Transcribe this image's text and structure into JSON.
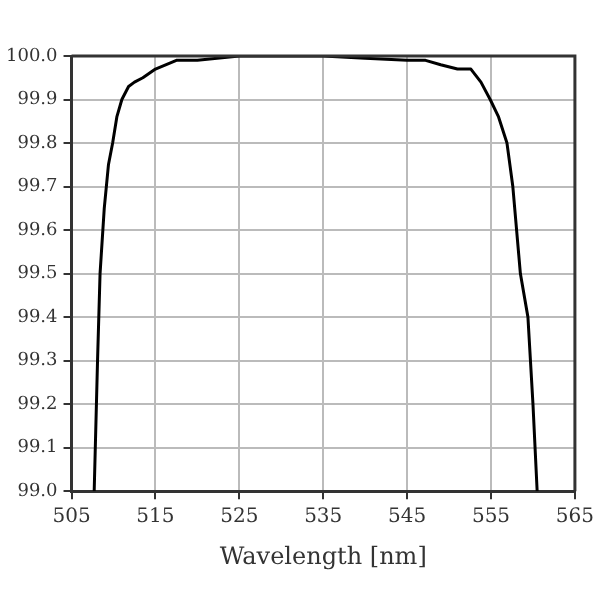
{
  "chart_data": {
    "type": "line",
    "xlabel": "Wavelength [nm]",
    "xlim": [
      505,
      565
    ],
    "xticks": [
      505,
      515,
      525,
      535,
      545,
      555,
      565
    ],
    "ylim": [
      99.0,
      100.0
    ],
    "yticks": [
      {
        "value": 99.0,
        "label": "99.0"
      },
      99.1,
      99.2,
      99.3,
      99.4,
      99.5,
      99.6,
      99.7,
      99.8,
      99.9,
      {
        "value": 100.0,
        "label": "100.0"
      }
    ],
    "grid": true,
    "line_style": "solid",
    "marker": "none",
    "series": [
      {
        "color": "#000000",
        "x": [
          507.7,
          508.1,
          508.4,
          508.9,
          509.4,
          509.9,
          510.4,
          511,
          511.8,
          512.5,
          513.5,
          515,
          517.5,
          520,
          525,
          530,
          535,
          540,
          545,
          547.2,
          549,
          551,
          552.6,
          553.8,
          554.9,
          555.9,
          556.9,
          557.6,
          558.5,
          559.4,
          560,
          560.5
        ],
        "values": [
          99.0,
          99.3,
          99.5,
          99.65,
          99.75,
          99.8,
          99.86,
          99.9,
          99.93,
          99.94,
          99.95,
          99.97,
          99.99,
          99.99,
          100.0,
          100.0,
          100.0,
          99.995,
          99.99,
          99.99,
          99.98,
          99.97,
          99.97,
          99.94,
          99.9,
          99.86,
          99.8,
          99.7,
          99.5,
          99.4,
          99.2,
          99.0
        ]
      }
    ]
  }
}
